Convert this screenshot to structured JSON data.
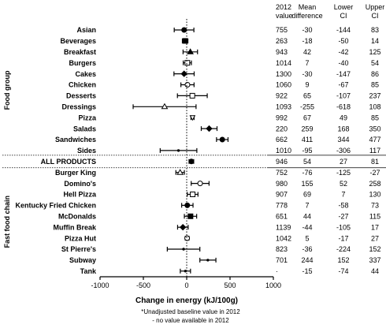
{
  "chart_data": {
    "type": "forest",
    "xlabel": "Change in energy (kJ/100g)",
    "xlim": [
      -1000,
      1000
    ],
    "xticks": [
      -1000,
      -500,
      0,
      500,
      1000
    ],
    "xtick_labels": [
      "-1000",
      "-500",
      "0",
      "500",
      "1000"
    ],
    "group_labels": {
      "food": "Food group",
      "chain": "Fast food chain"
    },
    "column_headers": {
      "baseline": [
        "2012",
        "value"
      ],
      "mean": [
        "Mean",
        "difference"
      ],
      "lower": [
        "Lower",
        "CI"
      ],
      "upper": [
        "Upper",
        "CI"
      ]
    },
    "rows": [
      {
        "label": "Asian",
        "baseline": "755",
        "mean": -30,
        "lower": -144,
        "upper": 83,
        "marker": "filled-circle",
        "group": "food"
      },
      {
        "label": "Beverages",
        "baseline": "263",
        "mean": -18,
        "lower": -50,
        "upper": 14,
        "marker": "filled-square",
        "group": "food"
      },
      {
        "label": "Breakfast",
        "baseline": "943",
        "mean": 42,
        "lower": -42,
        "upper": 125,
        "marker": "filled-triangle",
        "group": "food"
      },
      {
        "label": "Burgers",
        "baseline": "1014",
        "mean": 7,
        "lower": -40,
        "upper": 54,
        "marker": "open-square",
        "group": "food"
      },
      {
        "label": "Cakes",
        "baseline": "1300",
        "mean": -30,
        "lower": -147,
        "upper": 86,
        "marker": "filled-diamond",
        "group": "food"
      },
      {
        "label": "Chicken",
        "baseline": "1060",
        "mean": 9,
        "lower": -67,
        "upper": 85,
        "marker": "open-circle",
        "group": "food"
      },
      {
        "label": "Desserts",
        "baseline": "922",
        "mean": 65,
        "lower": -107,
        "upper": 237,
        "marker": "open-square",
        "group": "food"
      },
      {
        "label": "Dressings",
        "baseline": "1093",
        "mean": -255,
        "lower": -618,
        "upper": 108,
        "marker": "open-triangle",
        "group": "food"
      },
      {
        "label": "Pizza",
        "baseline": "992",
        "mean": 67,
        "lower": 49,
        "upper": 85,
        "marker": "open-down-triangle",
        "group": "food"
      },
      {
        "label": "Salads",
        "baseline": "220",
        "mean": 259,
        "lower": 168,
        "upper": 350,
        "marker": "filled-diamond",
        "group": "food"
      },
      {
        "label": "Sandwiches",
        "baseline": "662",
        "mean": 411,
        "lower": 344,
        "upper": 477,
        "marker": "filled-circle",
        "group": "food"
      },
      {
        "label": "Sides",
        "baseline": "1010",
        "mean": -95,
        "lower": -306,
        "upper": 117,
        "marker": "small-dot",
        "group": "food"
      },
      {
        "label": "ALL PRODUCTS",
        "baseline": "946",
        "mean": 54,
        "lower": 27,
        "upper": 81,
        "marker": "filled-circle",
        "group": "all"
      },
      {
        "label": "Burger King",
        "baseline": "752",
        "mean": -76,
        "lower": -125,
        "upper": -27,
        "marker": "open-triangle",
        "group": "chain"
      },
      {
        "label": "Domino's",
        "baseline": "980",
        "mean": 155,
        "lower": 52,
        "upper": 258,
        "marker": "open-circle",
        "group": "chain"
      },
      {
        "label": "Hell Pizza",
        "baseline": "907",
        "mean": 69,
        "lower": 7,
        "upper": 130,
        "marker": "open-square",
        "group": "chain"
      },
      {
        "label": "Kentucky Fried Chicken",
        "baseline": "778",
        "mean": 7,
        "lower": -58,
        "upper": 73,
        "marker": "filled-circle",
        "group": "chain"
      },
      {
        "label": "McDonalds",
        "baseline": "651",
        "mean": 44,
        "lower": -27,
        "upper": 115,
        "marker": "filled-square",
        "group": "chain"
      },
      {
        "label": "Muffin Break",
        "baseline": "1139",
        "mean": -44,
        "lower": -105,
        "upper": 17,
        "marker": "filled-diamond",
        "group": "chain"
      },
      {
        "label": "Pizza Hut",
        "baseline": "1042",
        "mean": 5,
        "lower": -17,
        "upper": 27,
        "marker": "open-circle",
        "group": "chain"
      },
      {
        "label": "St Pierre's",
        "baseline": "823",
        "mean": -36,
        "lower": -224,
        "upper": 152,
        "marker": "small-dot",
        "group": "chain"
      },
      {
        "label": "Subway",
        "baseline": "701",
        "mean": 244,
        "lower": 152,
        "upper": 337,
        "marker": "small-dot",
        "group": "chain"
      },
      {
        "label": "Tank",
        "baseline": "·",
        "mean": -15,
        "lower": -74,
        "upper": 44,
        "marker": "small-dot",
        "group": "chain"
      }
    ],
    "footnotes": [
      "*Unadjusted baseline value in 2012",
      "- no value available in 2012"
    ]
  }
}
